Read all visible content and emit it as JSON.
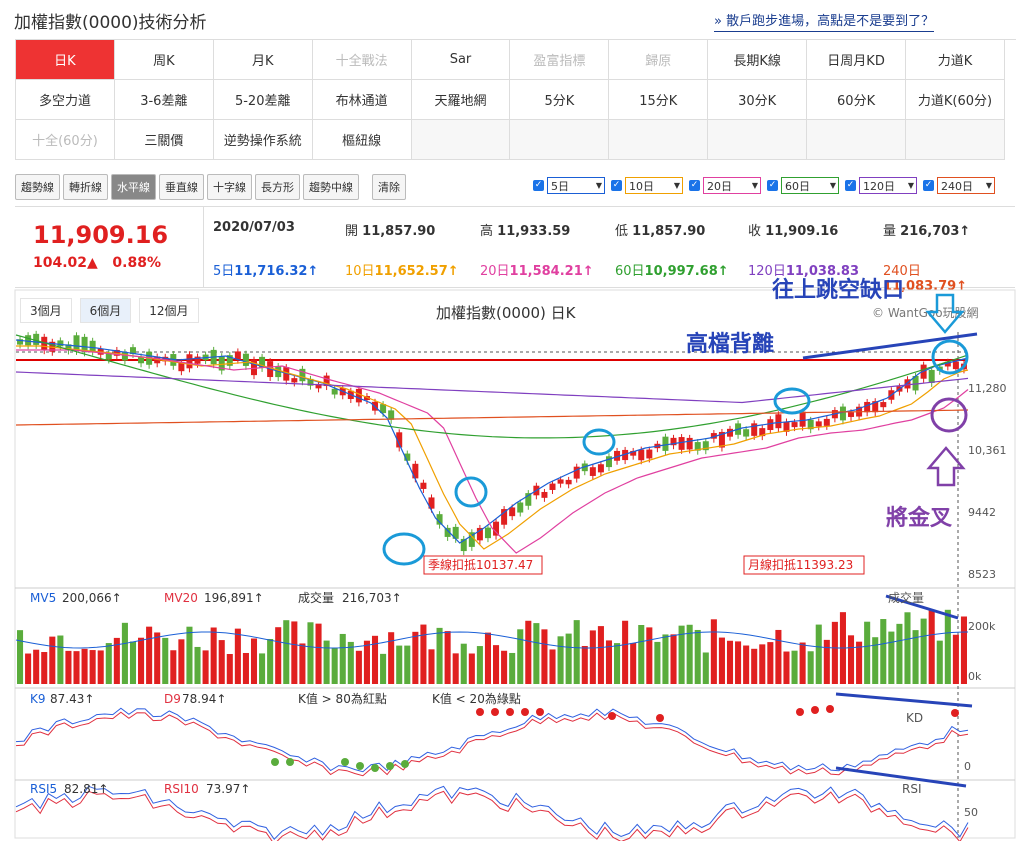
{
  "page_title": "加權指數(0000)技術分析",
  "top_link": "» 散戶跑步進場，高點是不是要到了？",
  "nav": {
    "rows": [
      [
        {
          "label": "日K",
          "state": "active"
        },
        {
          "label": "周K"
        },
        {
          "label": "月K"
        },
        {
          "label": "十全戰法",
          "state": "disabled"
        },
        {
          "label": "Sar"
        },
        {
          "label": "盈富指標",
          "state": "disabled"
        },
        {
          "label": "歸原",
          "state": "disabled"
        },
        {
          "label": "長期K線"
        },
        {
          "label": "日周月KD"
        },
        {
          "label": "力道K"
        }
      ],
      [
        {
          "label": "多空力道"
        },
        {
          "label": "3-6差離"
        },
        {
          "label": "5-20差離"
        },
        {
          "label": "布林通道"
        },
        {
          "label": "天羅地網"
        },
        {
          "label": "5分K"
        },
        {
          "label": "15分K"
        },
        {
          "label": "30分K"
        },
        {
          "label": "60分K"
        },
        {
          "label": "力道K(60分)"
        }
      ],
      [
        {
          "label": "十全(60分)",
          "state": "disabled"
        },
        {
          "label": "三關價"
        },
        {
          "label": "逆勢操作系統"
        },
        {
          "label": "樞紐線"
        },
        {
          "label": "",
          "state": "empty"
        },
        {
          "label": "",
          "state": "empty"
        },
        {
          "label": "",
          "state": "empty"
        },
        {
          "label": "",
          "state": "empty"
        },
        {
          "label": "",
          "state": "empty"
        },
        {
          "label": "",
          "state": "empty"
        }
      ]
    ]
  },
  "tools": [
    "趨勢線",
    "轉折線",
    "水平線",
    "垂直線",
    "十字線",
    "長方形",
    "趨勢中線"
  ],
  "tool_active": "水平線",
  "clear_label": "清除",
  "ma_selectors": [
    {
      "value": "5日",
      "color": "#1a5fd6"
    },
    {
      "value": "10日",
      "color": "#f0a000"
    },
    {
      "value": "20日",
      "color": "#e040a0"
    },
    {
      "value": "60日",
      "color": "#30a030"
    },
    {
      "value": "120日",
      "color": "#8040c0"
    },
    {
      "value": "240日",
      "color": "#e05020"
    }
  ],
  "quote": {
    "price": "11,909.16",
    "change": "104.02▲",
    "change_pct": "0.88%",
    "date": "2020/07/03",
    "open_label": "開",
    "open": "11,857.90",
    "high_label": "高",
    "high": "11,933.59",
    "low_label": "低",
    "low": "11,857.90",
    "close_label": "收",
    "close": "11,909.16",
    "vol_label": "量",
    "vol": "216,703↑",
    "ma": [
      {
        "label": "5日",
        "value": "11,716.32↑",
        "color": "#1a5fd6"
      },
      {
        "label": "10日",
        "value": "11,652.57↑",
        "color": "#f0a000"
      },
      {
        "label": "20日",
        "value": "11,584.21↑",
        "color": "#e040a0"
      },
      {
        "label": "60日",
        "value": "10,997.68↑",
        "color": "#30a030"
      },
      {
        "label": "120日",
        "value": "11,038.83",
        "color": "#8040c0"
      },
      {
        "label": "240日",
        "value": "11,083.79↑",
        "color": "#e05020"
      }
    ]
  },
  "periods": [
    "3個月",
    "6個月",
    "12個月"
  ],
  "period_active": "6個月",
  "chart_title": "加權指數(0000) 日K",
  "copyright": "© WantGoo玩股網",
  "price_ticks": [
    "11,280",
    "10,361",
    "9442",
    "8523"
  ],
  "price_flags": [
    "季線扣抵10137.47",
    "月線扣抵11393.23"
  ],
  "volume": {
    "mv5_label": "MV5",
    "mv5": "200,066↑",
    "mv20_label": "MV20",
    "mv20": "196,891↑",
    "vol_label": "成交量",
    "vol": "216,703↑",
    "panel_label": "成交量",
    "ticks": [
      "200k",
      "0k"
    ]
  },
  "kd": {
    "k_label": "K9",
    "k": "87.43↑",
    "d_label": "D9",
    "d": "78.94↑",
    "note1": "K值 > 80為紅點",
    "note2": "K值 < 20為綠點",
    "panel_label": "KD",
    "tick": "0"
  },
  "rsi": {
    "r5_label": "RSI5",
    "r5": "82.81↑",
    "r10_label": "RSI10",
    "r10": "73.97↑",
    "panel_label": "RSI",
    "tick": "50"
  },
  "annotations": {
    "gap_up": "往上跳空缺口",
    "top_divergence": "高檔背離",
    "golden_cross": "將金叉"
  },
  "colors": {
    "up": "#e02020",
    "down": "#5aac3c",
    "accent": "#e33"
  },
  "chart_data": {
    "type": "line",
    "title": "加權指數(0000) 日K",
    "y_ticks": [
      11280,
      10361,
      9442,
      8523
    ],
    "series": [
      {
        "name": "5日",
        "values": [
          11716.32
        ]
      },
      {
        "name": "10日",
        "values": [
          11652.57
        ]
      },
      {
        "name": "20日",
        "values": [
          11584.21
        ]
      },
      {
        "name": "60日",
        "values": [
          10997.68
        ]
      },
      {
        "name": "120日",
        "values": [
          11038.83
        ]
      },
      {
        "name": "240日",
        "values": [
          11083.79
        ]
      }
    ]
  }
}
